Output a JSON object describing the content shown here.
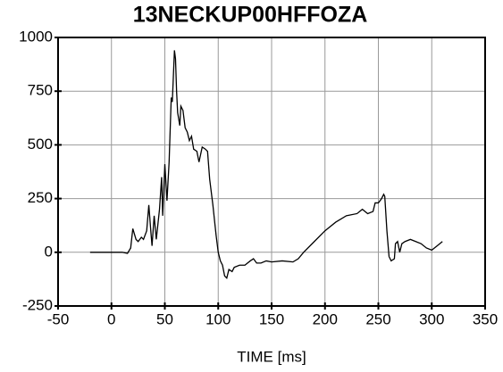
{
  "chart_data": {
    "type": "line",
    "title": "13NECKUP00HFFOZA",
    "x_label": "TIME [ms]",
    "x": [
      -20,
      10,
      15,
      18,
      20,
      23,
      25,
      28,
      30,
      33,
      35,
      37,
      38,
      40,
      42,
      45,
      47,
      48,
      50,
      52,
      54,
      56,
      57,
      59,
      60,
      61,
      62,
      64,
      65,
      67,
      69,
      71,
      73,
      75,
      77,
      80,
      82,
      85,
      88,
      90,
      92,
      95,
      98,
      100,
      102,
      104,
      106,
      108,
      110,
      113,
      115,
      120,
      125,
      130,
      133,
      136,
      140,
      145,
      150,
      160,
      170,
      175,
      180,
      190,
      200,
      210,
      220,
      230,
      235,
      240,
      245,
      247,
      250,
      253,
      255,
      256,
      257,
      258,
      260,
      262,
      265,
      266,
      268,
      270,
      272,
      275,
      280,
      285,
      290,
      295,
      300,
      305,
      310
    ],
    "series": [
      {
        "color": "#000000",
        "values": [
          0,
          0,
          -5,
          20,
          110,
          60,
          50,
          70,
          60,
          100,
          220,
          90,
          30,
          170,
          60,
          200,
          350,
          170,
          410,
          240,
          420,
          720,
          700,
          940,
          900,
          750,
          650,
          590,
          680,
          660,
          580,
          560,
          520,
          540,
          480,
          470,
          420,
          490,
          480,
          470,
          340,
          220,
          80,
          0,
          -40,
          -60,
          -110,
          -120,
          -80,
          -90,
          -70,
          -60,
          -60,
          -40,
          -30,
          -50,
          -50,
          -40,
          -45,
          -40,
          -45,
          -30,
          0,
          50,
          100,
          140,
          170,
          180,
          200,
          180,
          190,
          230,
          230,
          250,
          270,
          260,
          180,
          100,
          -20,
          -40,
          -30,
          40,
          50,
          0,
          40,
          50,
          60,
          50,
          40,
          20,
          10,
          30,
          50
        ]
      }
    ],
    "xlim": [
      -50,
      350
    ],
    "xticks": [
      -50,
      0,
      50,
      100,
      150,
      200,
      250,
      300,
      350
    ],
    "ylim": [
      -250,
      1000
    ],
    "yticks": [
      -250,
      0,
      250,
      500,
      750,
      1000
    ],
    "grid": true
  }
}
